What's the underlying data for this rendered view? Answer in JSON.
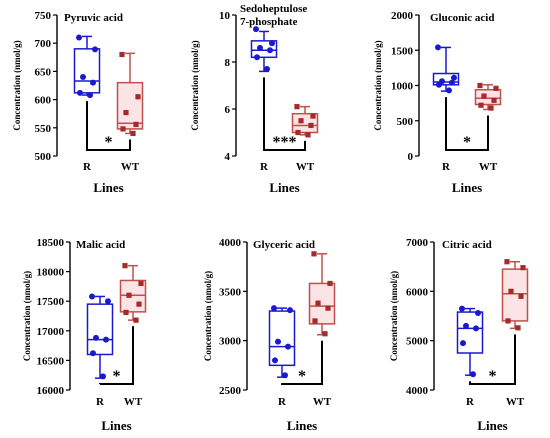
{
  "colors": {
    "R": "#1a1acc",
    "WT": "#c0504d",
    "WT_fill": "#fbe3e6",
    "WT_point": "#a52a2a",
    "axis": "#000000"
  },
  "chart_data": [
    {
      "type": "box",
      "title": "Pyruvic acid",
      "title_lines": [
        "Pyruvic acid"
      ],
      "ylabel": "Concentration (nmol/g)",
      "xlabel": "Lines",
      "categories": [
        "R",
        "WT"
      ],
      "yticks": [
        "500",
        "550",
        "600",
        "650",
        "700",
        "750"
      ],
      "ylim": [
        500,
        750
      ],
      "significance": "*",
      "series": [
        {
          "name": "R",
          "min": 608,
          "q1": 612,
          "median": 633,
          "q3": 690,
          "max": 712,
          "points": [
            710,
            689,
            640,
            630,
            612,
            608
          ]
        },
        {
          "name": "WT",
          "min": 540,
          "q1": 548,
          "median": 558,
          "q3": 630,
          "max": 682,
          "points": [
            680,
            605,
            577,
            556,
            548,
            540
          ]
        }
      ]
    },
    {
      "type": "box",
      "title": "Sedoheptulose 7-phosphate",
      "title_lines": [
        "Sedoheptulose",
        "7-phosphate"
      ],
      "ylabel": "Concentration (nmol/g)",
      "xlabel": "Lines",
      "categories": [
        "R",
        "WT"
      ],
      "yticks": [
        "4",
        "6",
        "8",
        "10"
      ],
      "ylim": [
        4,
        10
      ],
      "significance": "***",
      "series": [
        {
          "name": "R",
          "min": 7.6,
          "q1": 8.2,
          "median": 8.5,
          "q3": 8.9,
          "max": 9.3,
          "points": [
            9.4,
            8.8,
            8.6,
            8.5,
            8.2,
            7.7
          ]
        },
        {
          "name": "WT",
          "min": 4.9,
          "q1": 5.0,
          "median": 5.3,
          "q3": 5.8,
          "max": 6.1,
          "points": [
            6.1,
            5.7,
            5.5,
            5.3,
            5.0,
            4.9
          ]
        }
      ]
    },
    {
      "type": "box",
      "title": "Gluconic acid",
      "title_lines": [
        "Gluconic acid"
      ],
      "ylabel": "Concentration (nmol/g)",
      "xlabel": "Lines",
      "categories": [
        "R",
        "WT"
      ],
      "yticks": [
        "0",
        "500",
        "1000",
        "1500",
        "2000"
      ],
      "ylim": [
        0,
        2000
      ],
      "significance": "*",
      "series": [
        {
          "name": "R",
          "min": 920,
          "q1": 1010,
          "median": 1050,
          "q3": 1170,
          "max": 1540,
          "points": [
            1540,
            1110,
            1060,
            1040,
            1010,
            930
          ]
        },
        {
          "name": "WT",
          "min": 660,
          "q1": 730,
          "median": 820,
          "q3": 940,
          "max": 1010,
          "points": [
            1000,
            960,
            850,
            790,
            720,
            680
          ]
        }
      ]
    },
    {
      "type": "box",
      "title": "Malic acid",
      "title_lines": [
        "Malic acid"
      ],
      "ylabel": "Concentration (nmol/g)",
      "xlabel": "Lines",
      "categories": [
        "R",
        "WT"
      ],
      "yticks": [
        "16000",
        "16500",
        "17000",
        "17500",
        "18000",
        "18500"
      ],
      "ylim": [
        16000,
        18500
      ],
      "significance": "*",
      "series": [
        {
          "name": "R",
          "min": 16200,
          "q1": 16600,
          "median": 16850,
          "q3": 17450,
          "max": 17580,
          "points": [
            17580,
            17500,
            16880,
            16850,
            16620,
            16230
          ]
        },
        {
          "name": "WT",
          "min": 17180,
          "q1": 17320,
          "median": 17600,
          "q3": 17850,
          "max": 18100,
          "points": [
            18100,
            17800,
            17600,
            17450,
            17310,
            17180
          ]
        }
      ]
    },
    {
      "type": "box",
      "title": "Glyceric acid",
      "title_lines": [
        "Glyceric acid"
      ],
      "ylabel": "Concentration (nmol/g)",
      "xlabel": "Lines",
      "categories": [
        "R",
        "WT"
      ],
      "yticks": [
        "2500",
        "3000",
        "3500",
        "4000"
      ],
      "ylim": [
        2500,
        4000
      ],
      "significance": "*",
      "series": [
        {
          "name": "R",
          "min": 2630,
          "q1": 2750,
          "median": 2940,
          "q3": 3300,
          "max": 3330,
          "points": [
            3330,
            3310,
            2990,
            2940,
            2800,
            2650
          ]
        },
        {
          "name": "WT",
          "min": 3060,
          "q1": 3170,
          "median": 3350,
          "q3": 3580,
          "max": 3880,
          "points": [
            3880,
            3580,
            3380,
            3330,
            3200,
            3070
          ]
        }
      ]
    },
    {
      "type": "box",
      "title": "Citric acid",
      "title_lines": [
        "Citric acid"
      ],
      "ylabel": "Concentration (nmol/g)",
      "xlabel": "Lines",
      "categories": [
        "R",
        "WT"
      ],
      "yticks": [
        "4000",
        "5000",
        "6000",
        "7000"
      ],
      "ylim": [
        4000,
        7000
      ],
      "significance": "*",
      "series": [
        {
          "name": "R",
          "min": 4300,
          "q1": 4750,
          "median": 5250,
          "q3": 5580,
          "max": 5650,
          "points": [
            5650,
            5560,
            5300,
            5250,
            4950,
            4320
          ]
        },
        {
          "name": "WT",
          "min": 5250,
          "q1": 5400,
          "median": 5950,
          "q3": 6450,
          "max": 6600,
          "points": [
            6600,
            6480,
            6000,
            5900,
            5400,
            5260
          ]
        }
      ]
    }
  ]
}
